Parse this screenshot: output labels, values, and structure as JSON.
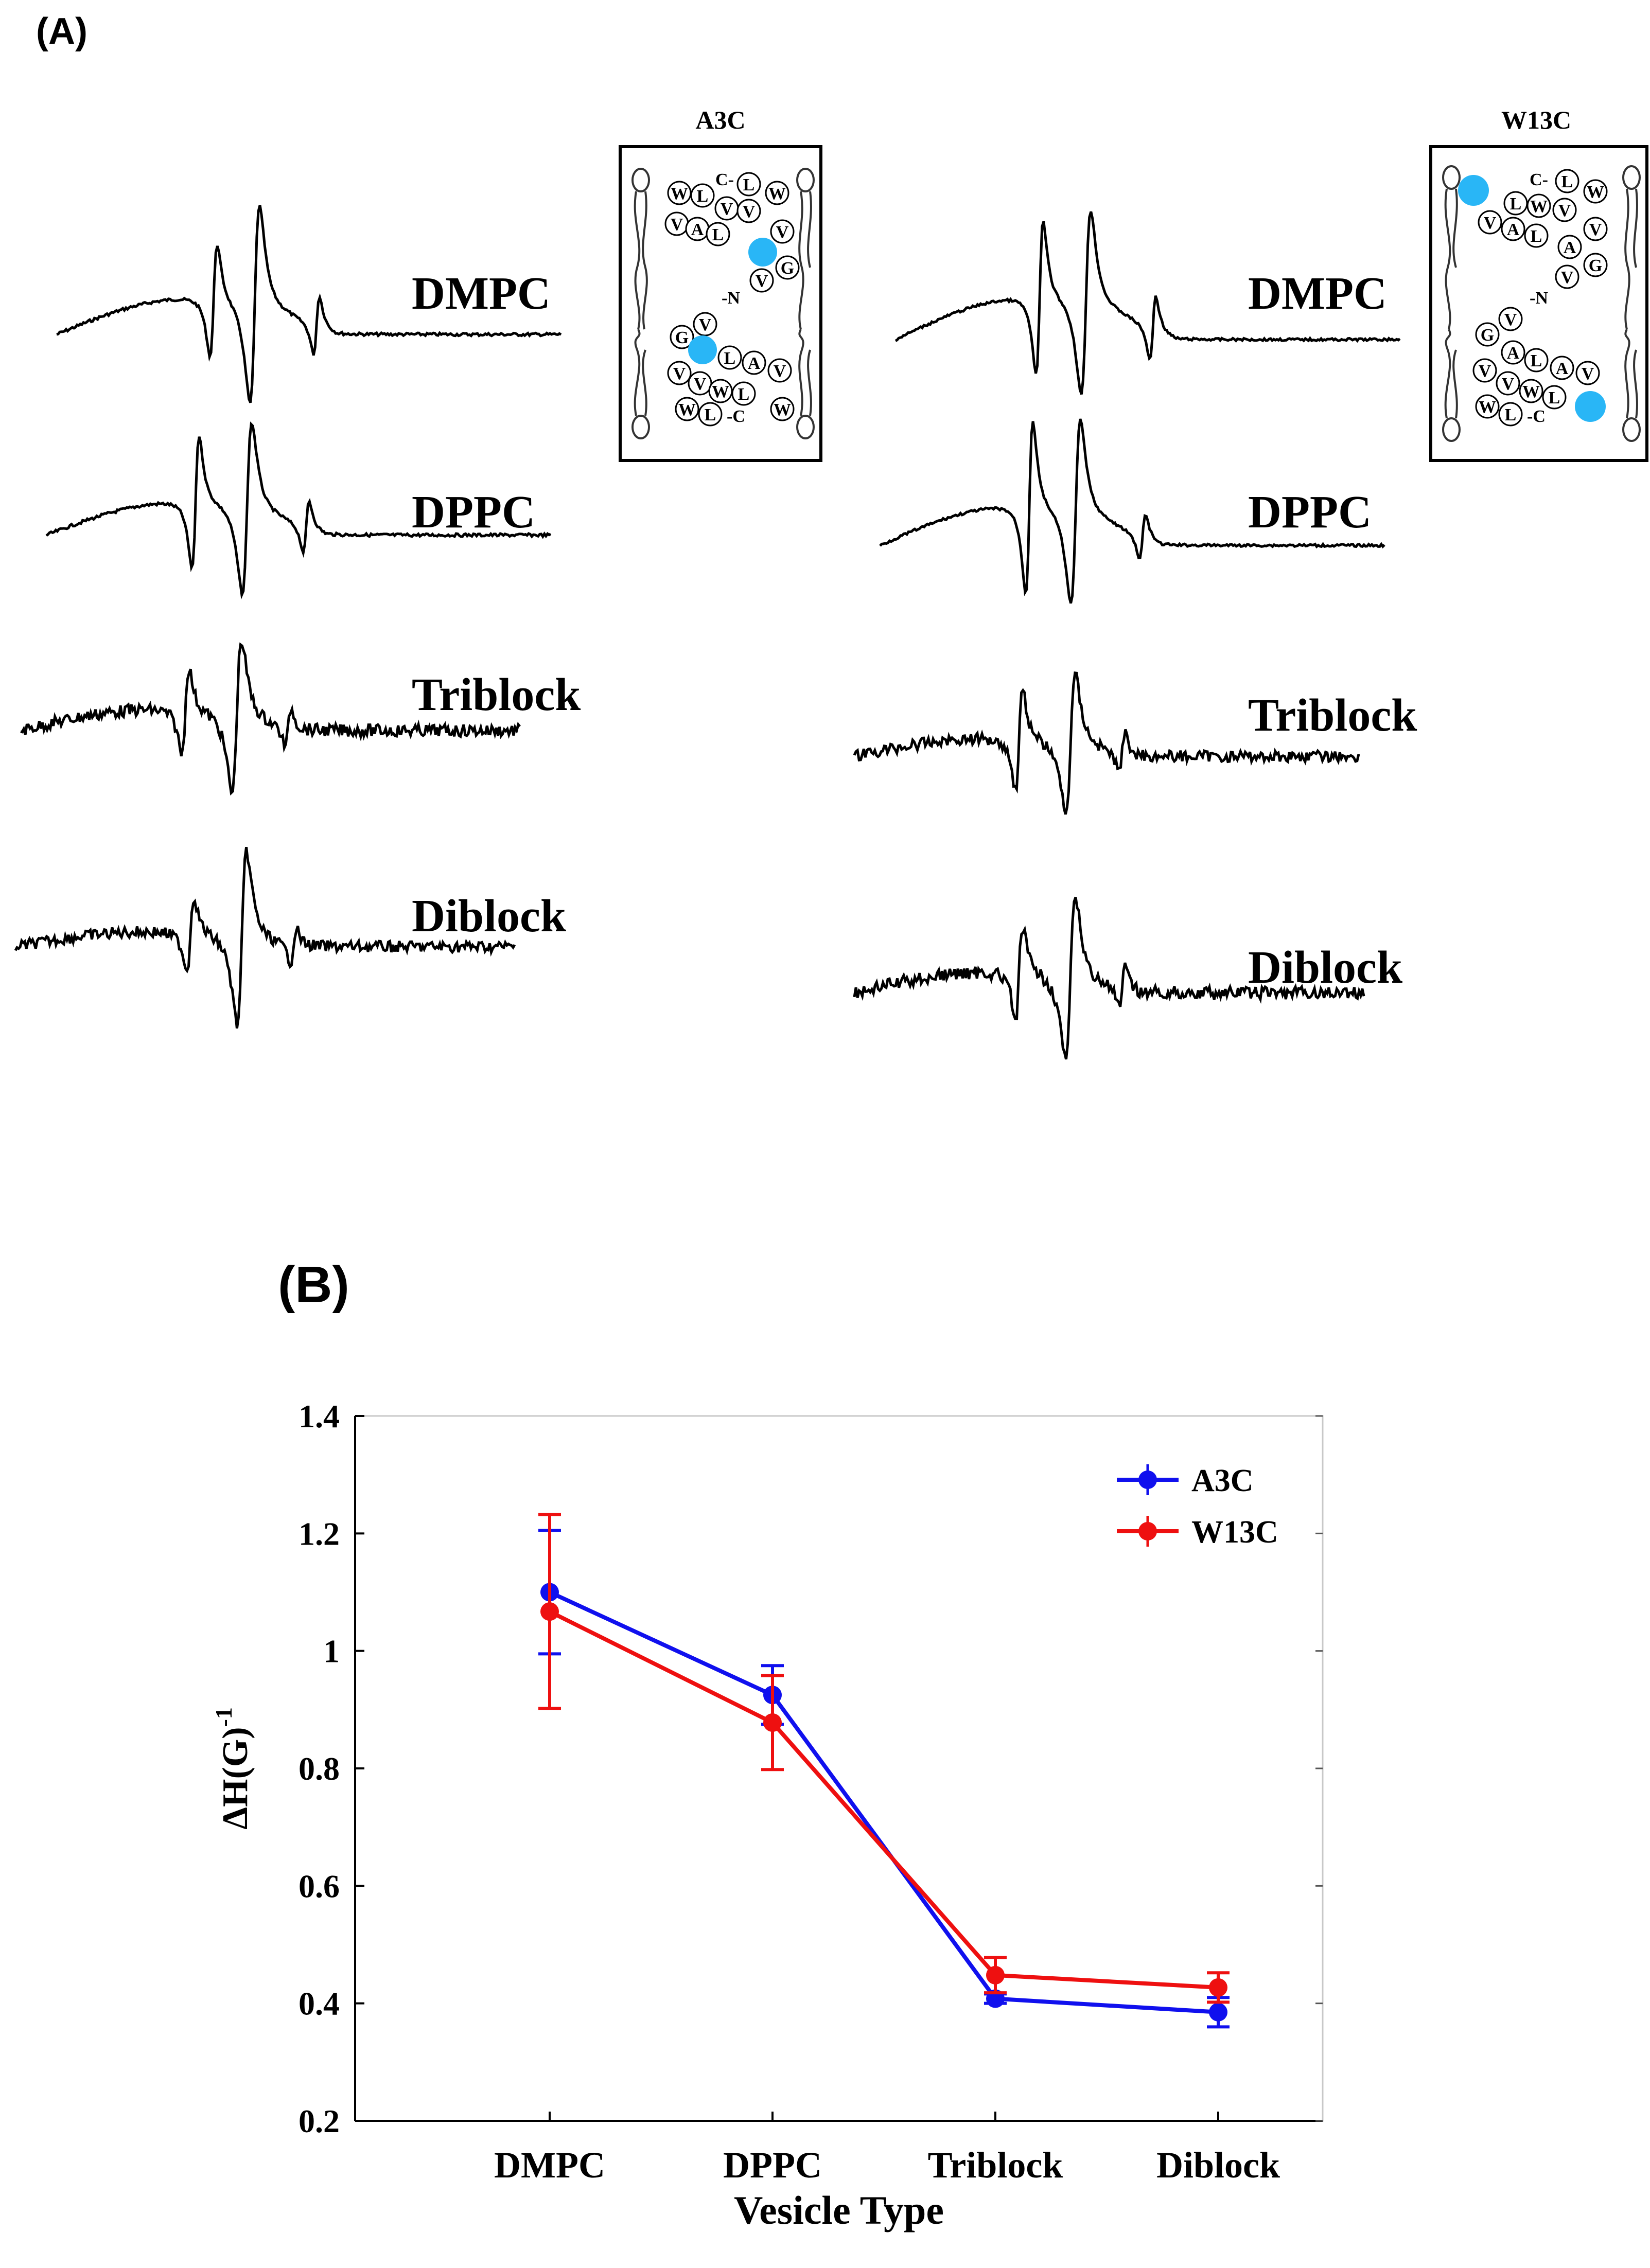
{
  "panel_a": {
    "label": "(A)",
    "groups": [
      {
        "title": "A3C",
        "spectra": [
          {
            "name": "DMPC"
          },
          {
            "name": "DPPC"
          },
          {
            "name": "Triblock"
          },
          {
            "name": "Diblock"
          }
        ],
        "inset_residues": [
          "W",
          "L",
          "C",
          "L",
          "W",
          "V",
          "A",
          "L",
          "V",
          "V",
          "G",
          "N",
          "V",
          "G",
          "V",
          "L",
          "A",
          "V",
          "V",
          "V",
          "W",
          "L",
          "W",
          "L",
          "C",
          "W"
        ],
        "inset_text": [
          "C-",
          "-N",
          "-C"
        ]
      },
      {
        "title": "W13C",
        "spectra": [
          {
            "name": "DMPC"
          },
          {
            "name": "DPPC"
          },
          {
            "name": "Triblock"
          },
          {
            "name": "Diblock"
          }
        ],
        "inset_residues": [
          "L",
          "W",
          "L",
          "W",
          "V",
          "V",
          "V",
          "A",
          "L",
          "A",
          "V",
          "V",
          "G",
          "N",
          "V",
          "G",
          "A",
          "L",
          "A",
          "V",
          "V",
          "V",
          "W",
          "L",
          "W",
          "L",
          "C"
        ],
        "inset_text": [
          "C-",
          "-N",
          "-C"
        ]
      }
    ],
    "spin_label_color": "#29b6f6"
  },
  "chart_data": {
    "label": "(B)",
    "type": "line",
    "categories": [
      "DMPC",
      "DPPC",
      "Triblock",
      "Diblock"
    ],
    "xlabel": "Vesicle Type",
    "ylabel": "ΔH(G)",
    "ylabel_sup": "-1",
    "ylim": [
      0.2,
      1.4
    ],
    "yticks": [
      "0.2",
      "0.4",
      "0.6",
      "0.8",
      "1",
      "1.2",
      "1.4"
    ],
    "legend_position": "top-right",
    "series": [
      {
        "name": "A3C",
        "color": "#1010ee",
        "values": [
          1.1,
          0.925,
          0.408,
          0.385
        ],
        "errors": [
          0.105,
          0.05,
          0.008,
          0.025
        ]
      },
      {
        "name": "W13C",
        "color": "#ee1010",
        "values": [
          1.067,
          0.878,
          0.448,
          0.427
        ],
        "errors": [
          0.165,
          0.08,
          0.03,
          0.025
        ]
      }
    ]
  }
}
